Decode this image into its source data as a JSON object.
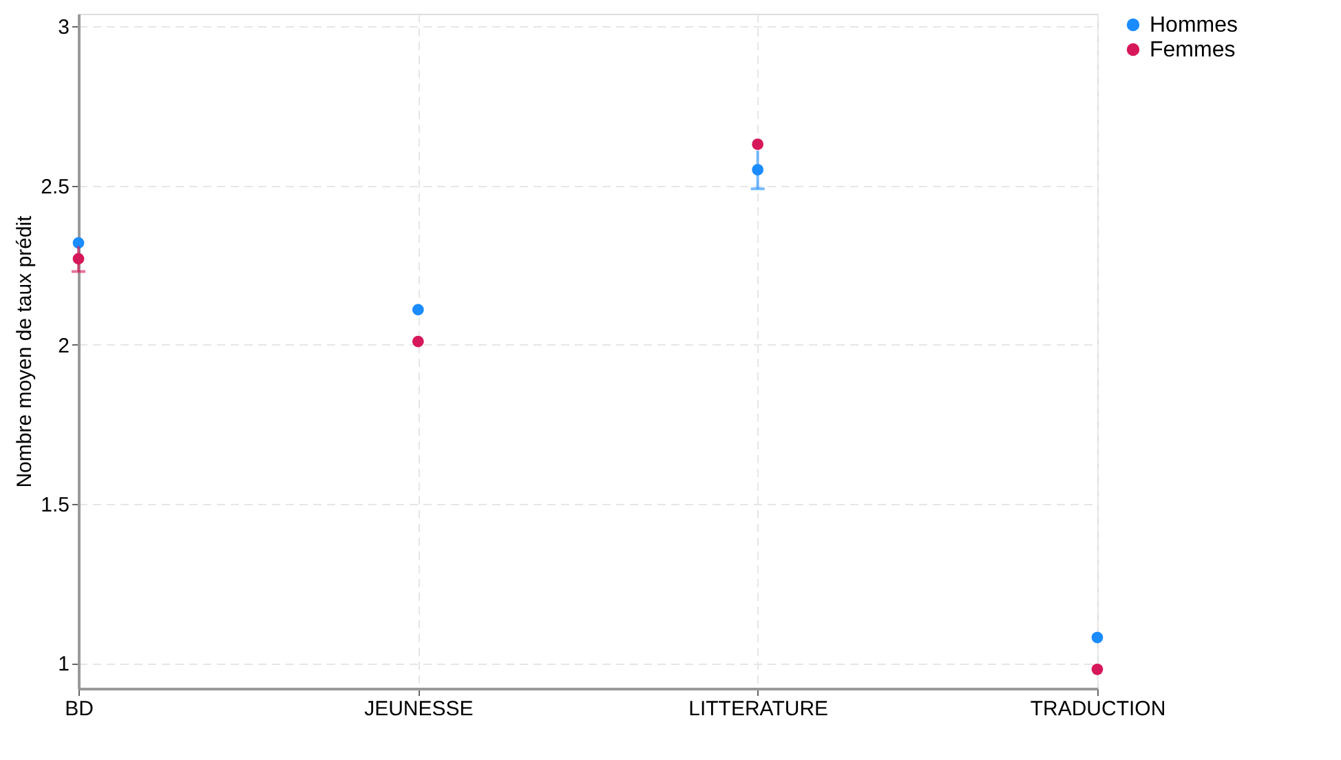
{
  "chart_data": {
    "type": "scatter",
    "ylabel": "Nombre moyen de taux prédit",
    "categories": [
      "BD",
      "JEUNESSE",
      "LITTERATURE",
      "TRADUCTION"
    ],
    "series": [
      {
        "name": "Hommes",
        "color": "#1a8cff",
        "values": [
          2.32,
          2.11,
          2.55,
          1.08
        ],
        "errors": [
          null,
          null,
          0.06,
          null
        ]
      },
      {
        "name": "Femmes",
        "color": "#d6185a",
        "values": [
          2.27,
          2.01,
          2.63,
          0.98
        ],
        "errors": [
          0.04,
          null,
          null,
          null
        ]
      }
    ],
    "ylim": [
      0.92,
      3.04
    ],
    "yticks": [
      1,
      1.5,
      2,
      2.5,
      3
    ],
    "grid": true,
    "legend": "right",
    "marker": "circle"
  }
}
